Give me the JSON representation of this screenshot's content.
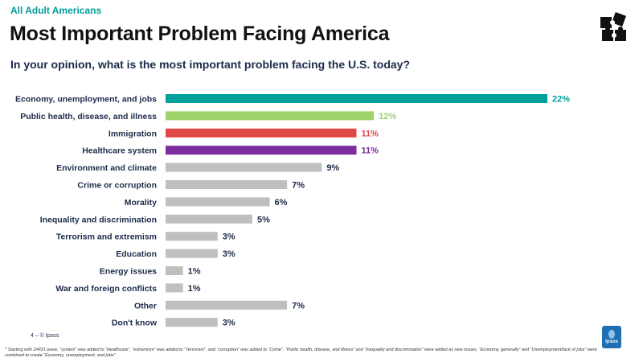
{
  "header": {
    "eyebrow": "All Adult Americans",
    "title": "Most Important Problem Facing America",
    "question": "In your opinion, what is the most important problem facing the U.S. today?"
  },
  "chart_data": {
    "type": "bar",
    "orientation": "horizontal",
    "categories": [
      "Economy, unemployment, and jobs",
      "Public health, disease, and illness",
      "Immigration",
      "Healthcare system",
      "Environment and climate",
      "Crime or corruption",
      "Morality",
      "Inequality and discrimination",
      "Terrorism and extremism",
      "Education",
      "Energy issues",
      "War and foreign conflicts",
      "Other",
      "Don't know"
    ],
    "values": [
      22,
      12,
      11,
      11,
      9,
      7,
      6,
      5,
      3,
      3,
      1,
      1,
      7,
      3
    ],
    "colors": [
      "#00a09b",
      "#9ed36a",
      "#e04848",
      "#7b2c9e",
      "#bfbfbf",
      "#bfbfbf",
      "#bfbfbf",
      "#bfbfbf",
      "#bfbfbf",
      "#bfbfbf",
      "#bfbfbf",
      "#bfbfbf",
      "#bfbfbf",
      "#bfbfbf"
    ],
    "label_colors": [
      "#00a09b",
      "#9ed36a",
      "#e04848",
      "#7b2c9e",
      "#1c2b4a",
      "#1c2b4a",
      "#1c2b4a",
      "#1c2b4a",
      "#1c2b4a",
      "#1c2b4a",
      "#1c2b4a",
      "#1c2b4a",
      "#1c2b4a",
      "#1c2b4a"
    ],
    "value_suffix": "%",
    "xlim": [
      0,
      22
    ],
    "title": "Most Important Problem Facing America",
    "xlabel": "",
    "ylabel": ""
  },
  "footer": {
    "page": "4 –  © Ipsos",
    "footnote": "* Starting with 2/4/21 wave, “system” was added to “Healthcare”, “extremism” was added to “Terrorism”, and “corruption” was added to “Crime”. “Public health, disease, and illness” and “Inequality and discrimination” were added as new issues. “Economy, generally” and “Unemployment/lack of jobs” were combined to create “Economy, unemployment, and jobs”",
    "logo": "Ipsos"
  }
}
